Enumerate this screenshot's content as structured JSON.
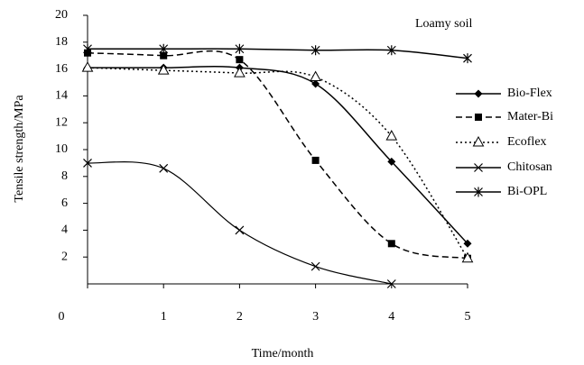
{
  "chart_data": {
    "type": "line",
    "annotation": "Loamy soil",
    "x_label": "Time/month",
    "y_label": "Tensile strength/MPa",
    "x": [
      0,
      1,
      2,
      3,
      4,
      5
    ],
    "xlim": [
      0,
      5
    ],
    "xticks": [
      0,
      1,
      2,
      3,
      4,
      5
    ],
    "ylim": [
      0,
      20
    ],
    "yticks": [
      2,
      4,
      6,
      8,
      10,
      12,
      14,
      16,
      18,
      20
    ],
    "legend": "right",
    "series": [
      {
        "name": "Bio-Flex",
        "color": "#000000",
        "dash": "solid",
        "marker": "diamond",
        "values": [
          16.1,
          16.1,
          16.1,
          14.9,
          9.1,
          3.0
        ]
      },
      {
        "name": "Mater-Bi",
        "color": "#000000",
        "dash": "dashed",
        "marker": "square",
        "values": [
          17.2,
          17.0,
          16.7,
          9.2,
          3.0,
          1.9
        ]
      },
      {
        "name": "Ecoflex",
        "color": "#000000",
        "dash": "dotted",
        "marker": "triangle",
        "values": [
          16.1,
          15.9,
          15.7,
          15.4,
          11.0,
          1.9
        ]
      },
      {
        "name": "Chitosan",
        "color": "#000000",
        "dash": "solid",
        "marker": "x",
        "values": [
          9.0,
          8.6,
          4.0,
          1.3,
          0,
          null
        ]
      },
      {
        "name": "Bi-OPL",
        "color": "#000000",
        "dash": "solid",
        "marker": "asterisk",
        "values": [
          17.5,
          17.5,
          17.5,
          17.4,
          17.4,
          16.8
        ]
      }
    ]
  }
}
